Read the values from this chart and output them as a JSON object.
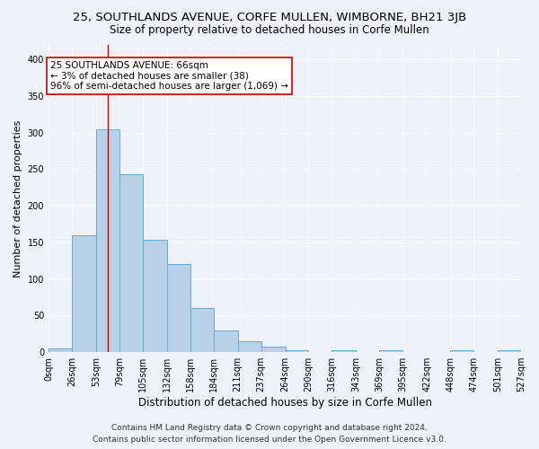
{
  "title": "25, SOUTHLANDS AVENUE, CORFE MULLEN, WIMBORNE, BH21 3JB",
  "subtitle": "Size of property relative to detached houses in Corfe Mullen",
  "xlabel": "Distribution of detached houses by size in Corfe Mullen",
  "ylabel": "Number of detached properties",
  "bin_edges": [
    0,
    26,
    53,
    79,
    105,
    132,
    158,
    184,
    211,
    237,
    264,
    290,
    316,
    343,
    369,
    395,
    422,
    448,
    474,
    501,
    527
  ],
  "bar_heights": [
    5,
    160,
    305,
    243,
    153,
    120,
    60,
    30,
    15,
    8,
    3,
    0,
    3,
    0,
    3,
    0,
    0,
    3,
    0,
    3
  ],
  "bar_color": "#b8d0e8",
  "bar_edge_color": "#6aaad4",
  "property_size": 66,
  "annotation_line_color": "#cc0000",
  "annotation_box_text": "25 SOUTHLANDS AVENUE: 66sqm\n← 3% of detached houses are smaller (38)\n96% of semi-detached houses are larger (1,069) →",
  "ylim": [
    0,
    420
  ],
  "yticks": [
    0,
    50,
    100,
    150,
    200,
    250,
    300,
    350,
    400
  ],
  "footer_line1": "Contains HM Land Registry data © Crown copyright and database right 2024.",
  "footer_line2": "Contains public sector information licensed under the Open Government Licence v3.0.",
  "bg_color": "#eef2fb",
  "plot_bg_color": "#eef2fb",
  "grid_color": "#ffffff",
  "title_fontsize": 9.5,
  "subtitle_fontsize": 8.5,
  "xlabel_fontsize": 8.5,
  "ylabel_fontsize": 8,
  "tick_fontsize": 7,
  "footer_fontsize": 6.5,
  "annotation_fontsize": 7.5
}
